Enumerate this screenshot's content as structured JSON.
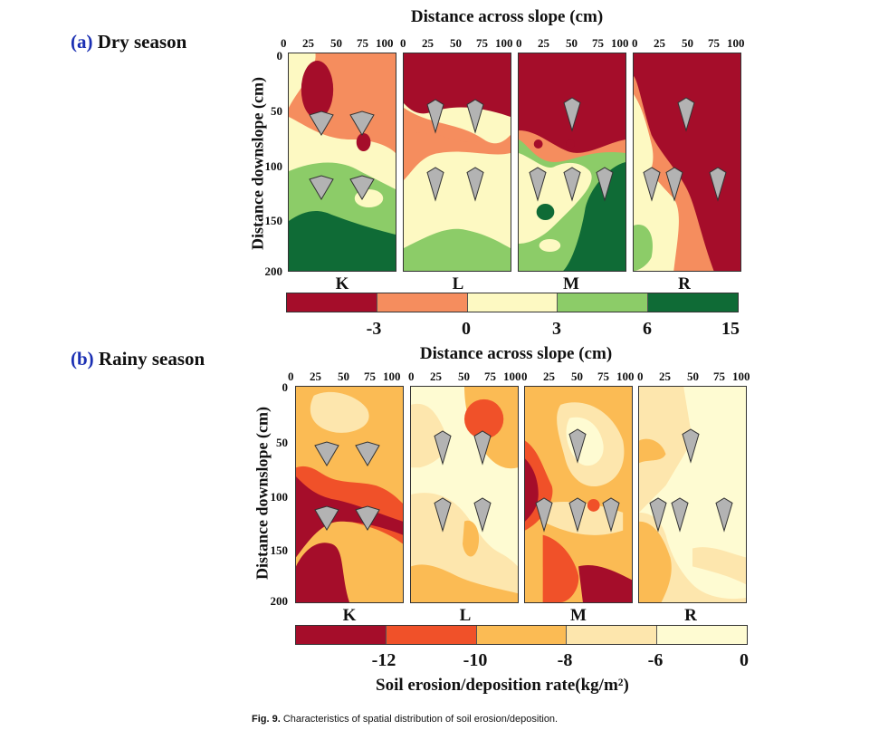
{
  "colors": {
    "dry": [
      "#a50d2a",
      "#f58d5e",
      "#fdf9c2",
      "#8ccc68",
      "#0f6b36"
    ],
    "rainy": [
      "#a50d2a",
      "#f05129",
      "#fbbb54",
      "#fde6ad",
      "#fefbd2"
    ],
    "marker": "#b3b3b3",
    "section_label": "#1a2fb3"
  },
  "dry": {
    "label": "(a)",
    "title": "Dry season",
    "x_axis_title": "Distance across slope (cm)",
    "y_axis_title": "Distance downslope (cm)",
    "x_ticks": [
      "0",
      "25",
      "50",
      "75",
      "100"
    ],
    "y_ticks": [
      "0",
      "50",
      "100",
      "150",
      "200"
    ],
    "panels": [
      "K",
      "L",
      "M",
      "R"
    ],
    "colorbar_ticks": [
      "-3",
      "0",
      "3",
      "6",
      "15"
    ]
  },
  "rainy": {
    "label": "(b)",
    "title": "Rainy season",
    "x_axis_title": "Distance across slope (cm)",
    "y_axis_title": "Distance downslope (cm)",
    "x_ticks": [
      "0",
      "25",
      "50",
      "75",
      "100"
    ],
    "y_ticks": [
      "0",
      "50",
      "100",
      "150",
      "200"
    ],
    "panels": [
      "K",
      "L",
      "M",
      "R"
    ],
    "colorbar_ticks": [
      "-12",
      "-10",
      "-8",
      "-6",
      "0"
    ],
    "colorbar_title": "Soil erosion/deposition rate(kg/m²)"
  },
  "caption": {
    "figure": "Fig. 9.",
    "text": "Characteristics of spatial distribution of soil erosion/deposition."
  }
}
